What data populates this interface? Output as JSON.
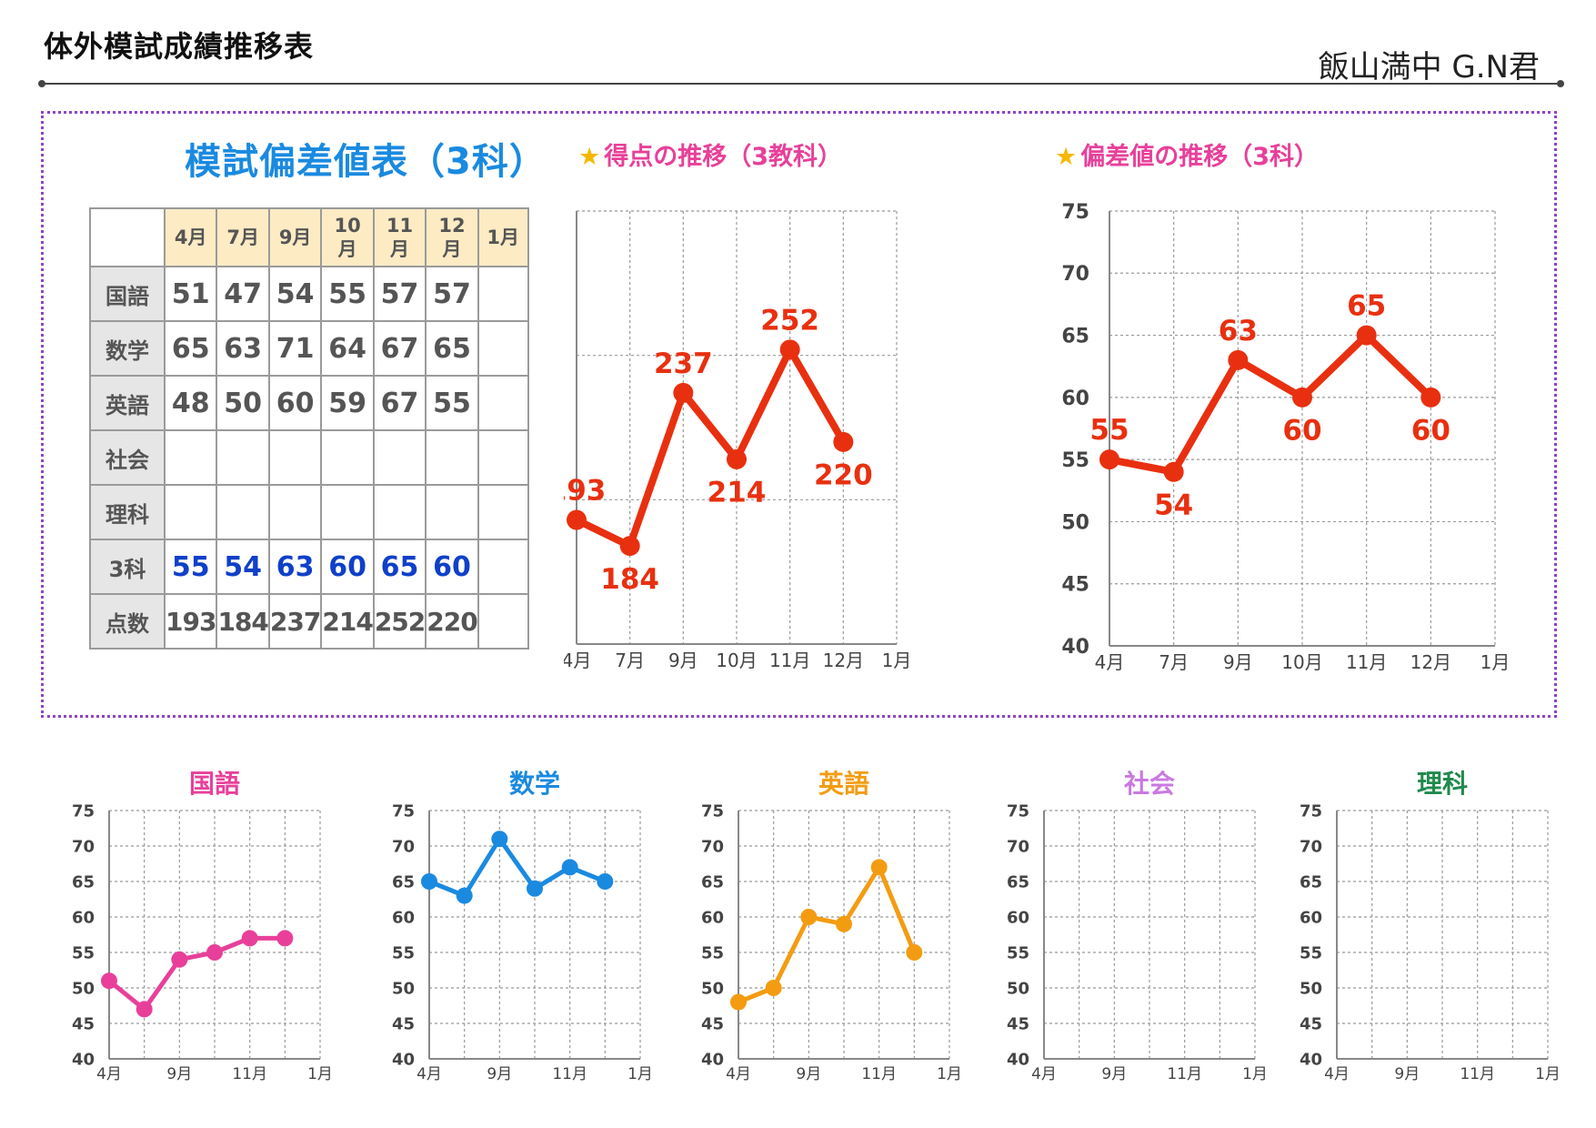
{
  "header": {
    "title": "体外模試成績推移表",
    "student": "飯山満中 G.N君"
  },
  "table": {
    "title": "模試偏差値表（3科）",
    "months": [
      "4月",
      "7月",
      "9月",
      "10\n月",
      "11\n月",
      "12\n月",
      "1月"
    ],
    "rows": [
      {
        "label": "国語",
        "values": [
          "51",
          "47",
          "54",
          "55",
          "57",
          "57",
          ""
        ]
      },
      {
        "label": "数学",
        "values": [
          "65",
          "63",
          "71",
          "64",
          "67",
          "65",
          ""
        ]
      },
      {
        "label": "英語",
        "values": [
          "48",
          "50",
          "60",
          "59",
          "67",
          "55",
          ""
        ]
      },
      {
        "label": "社会",
        "values": [
          "",
          "",
          "",
          "",
          "",
          "",
          ""
        ]
      },
      {
        "label": "理科",
        "values": [
          "",
          "",
          "",
          "",
          "",
          "",
          ""
        ]
      },
      {
        "label": "3科",
        "values": [
          "55",
          "54",
          "63",
          "60",
          "65",
          "60",
          ""
        ]
      },
      {
        "label": "点数",
        "values": [
          "193",
          "184",
          "237",
          "214",
          "252",
          "220",
          ""
        ]
      }
    ]
  },
  "chart_data": [
    {
      "id": "score",
      "type": "line",
      "title": "得点の推移（3教科）",
      "categories": [
        "4月",
        "7月",
        "9月",
        "10月",
        "11月",
        "12月",
        "1月"
      ],
      "series": [
        {
          "values": [
            193,
            184,
            237,
            214,
            252,
            220,
            null
          ],
          "color": "#e83010"
        }
      ],
      "ylim": [
        150,
        300
      ],
      "yticks": [
        150,
        200,
        250,
        300
      ],
      "data_labels": true,
      "grid": true
    },
    {
      "id": "dev",
      "type": "line",
      "title": "偏差値の推移（3科）",
      "categories": [
        "4月",
        "7月",
        "9月",
        "10月",
        "11月",
        "12月",
        "1月"
      ],
      "series": [
        {
          "values": [
            55,
            54,
            63,
            60,
            65,
            60,
            null
          ],
          "color": "#e83010"
        }
      ],
      "ylim": [
        40,
        75
      ],
      "yticks": [
        40,
        45,
        50,
        55,
        60,
        65,
        70,
        75
      ],
      "data_labels": true,
      "grid": true
    },
    {
      "id": "kokugo",
      "type": "line",
      "title": "国語",
      "title_color": "#e8409a",
      "categories": [
        "4月",
        "7月",
        "9月",
        "10月",
        "11月",
        "12月",
        "1月"
      ],
      "xtick_labels": [
        "4月",
        "",
        "9月",
        "",
        "11月",
        "",
        "1月"
      ],
      "series": [
        {
          "values": [
            51,
            47,
            54,
            55,
            57,
            57,
            null
          ],
          "color": "#e8409a"
        }
      ],
      "ylim": [
        40,
        75
      ],
      "yticks": [
        40,
        45,
        50,
        55,
        60,
        65,
        70,
        75
      ],
      "grid": true
    },
    {
      "id": "sugaku",
      "type": "line",
      "title": "数学",
      "title_color": "#1a8ae0",
      "categories": [
        "4月",
        "7月",
        "9月",
        "10月",
        "11月",
        "12月",
        "1月"
      ],
      "xtick_labels": [
        "4月",
        "",
        "9月",
        "",
        "11月",
        "",
        "1月"
      ],
      "series": [
        {
          "values": [
            65,
            63,
            71,
            64,
            67,
            65,
            null
          ],
          "color": "#1a8ae0"
        }
      ],
      "ylim": [
        40,
        75
      ],
      "yticks": [
        40,
        45,
        50,
        55,
        60,
        65,
        70,
        75
      ],
      "grid": true
    },
    {
      "id": "eigo",
      "type": "line",
      "title": "英語",
      "title_color": "#f39c12",
      "categories": [
        "4月",
        "7月",
        "9月",
        "10月",
        "11月",
        "12月",
        "1月"
      ],
      "xtick_labels": [
        "4月",
        "",
        "9月",
        "",
        "11月",
        "",
        "1月"
      ],
      "series": [
        {
          "values": [
            48,
            50,
            60,
            59,
            67,
            55,
            null
          ],
          "color": "#f39c12"
        }
      ],
      "ylim": [
        40,
        75
      ],
      "yticks": [
        40,
        45,
        50,
        55,
        60,
        65,
        70,
        75
      ],
      "grid": true
    },
    {
      "id": "shakai",
      "type": "line",
      "title": "社会",
      "title_color": "#c879e0",
      "categories": [
        "4月",
        "7月",
        "9月",
        "10月",
        "11月",
        "12月",
        "1月"
      ],
      "xtick_labels": [
        "4月",
        "",
        "9月",
        "",
        "11月",
        "",
        "1月"
      ],
      "series": [
        {
          "values": [
            null,
            null,
            null,
            null,
            null,
            null,
            null
          ],
          "color": "#c879e0"
        }
      ],
      "ylim": [
        40,
        75
      ],
      "yticks": [
        40,
        45,
        50,
        55,
        60,
        65,
        70,
        75
      ],
      "grid": true
    },
    {
      "id": "rika",
      "type": "line",
      "title": "理科",
      "title_color": "#1f8a4c",
      "categories": [
        "4月",
        "7月",
        "9月",
        "10月",
        "11月",
        "12月",
        "1月"
      ],
      "xtick_labels": [
        "4月",
        "",
        "9月",
        "",
        "11月",
        "",
        "1月"
      ],
      "series": [
        {
          "values": [
            null,
            null,
            null,
            null,
            null,
            null,
            null
          ],
          "color": "#1f8a4c"
        }
      ],
      "ylim": [
        40,
        75
      ],
      "yticks": [
        40,
        45,
        50,
        55,
        60,
        65,
        70,
        75
      ],
      "grid": true
    }
  ]
}
